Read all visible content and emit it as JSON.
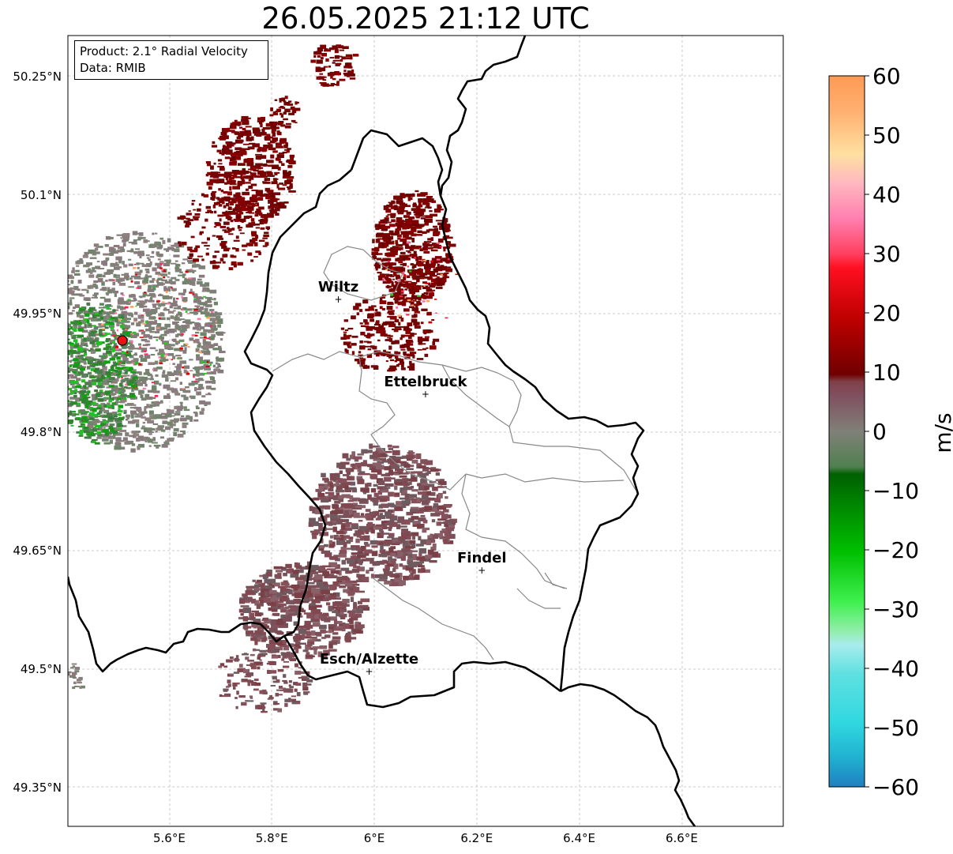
{
  "title": "26.05.2025 21:12 UTC",
  "info": {
    "product": "Product: 2.1° Radial Velocity",
    "data_source": "Data: RMIB"
  },
  "map": {
    "lon_ticks": [
      "5.6°E",
      "5.8°E",
      "6°E",
      "6.2°E",
      "6.4°E",
      "6.6°E"
    ],
    "lat_ticks": [
      "50.25°N",
      "50.1°N",
      "49.95°N",
      "49.8°N",
      "49.65°N",
      "49.5°N",
      "49.35°N"
    ],
    "cities": [
      {
        "name": "Wiltz",
        "lon": 5.93,
        "lat": 49.968
      },
      {
        "name": "Ettelbruck",
        "lon": 6.1,
        "lat": 49.848
      },
      {
        "name": "Findel",
        "lon": 6.21,
        "lat": 49.625
      },
      {
        "name": "Esch/Alzette",
        "lon": 5.99,
        "lat": 49.497
      }
    ],
    "radar_site": {
      "lon": 5.505,
      "lat": 49.915
    }
  },
  "colorbar": {
    "label": "m/s",
    "ticks": [
      "60",
      "50",
      "40",
      "30",
      "20",
      "10",
      "0",
      "−10",
      "−20",
      "−30",
      "−40",
      "−50",
      "−60"
    ],
    "range": [
      -60,
      60
    ],
    "colors": [
      "#2080c0",
      "#20b0d0",
      "#30d8e0",
      "#60e0e0",
      "#a8eced",
      "#90eea8",
      "#50f060",
      "#10e010",
      "#00b000",
      "#007000",
      "#508050",
      "#808078",
      "#806070",
      "#804048",
      "#700000",
      "#a00000",
      "#e00000",
      "#ff3050",
      "#ff70a0",
      "#ffb0b8",
      "#ffe0a0",
      "#ffb070",
      "#ff9050"
    ]
  }
}
